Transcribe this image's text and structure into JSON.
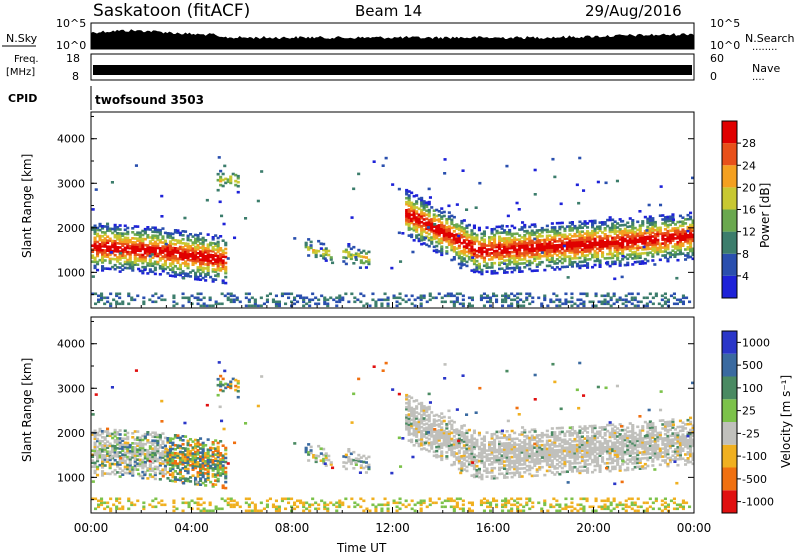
{
  "header": {
    "title": "Saskatoon (fitACF)",
    "beam": "Beam 14",
    "date": "29/Aug/2016"
  },
  "top_panels": {
    "nsky_label": "N.Sky",
    "nsearch_label": "N.Search",
    "nsearch_dots": "........",
    "nsky_ticks": [
      "10^5",
      "10^0"
    ],
    "nsearch_ticks": [
      "10^5",
      "10^0"
    ],
    "freq_label": "Freq.",
    "freq_unit": "[MHz]",
    "freq_ticks": [
      "18",
      "8"
    ],
    "nave_label": "Nave",
    "nave_dots": "....",
    "nave_ticks": [
      "60",
      "0"
    ],
    "cpid_label": "CPID",
    "cpid_value": "twofsound 3503"
  },
  "chart_data": [
    {
      "type": "heatmap",
      "name": "power",
      "ylabel": "Slant Range [km]",
      "ylim": [
        200,
        4600
      ],
      "yticks": [
        "1000",
        "2000",
        "3000",
        "4000"
      ],
      "colorbar_label": "Power [dB]",
      "colorbar_ticks": [
        "4",
        "8",
        "12",
        "16",
        "20",
        "24",
        "28"
      ],
      "colorbar_colors": [
        "#1e22d8",
        "#2a4fae",
        "#3c7d6c",
        "#6aa84f",
        "#c8c832",
        "#f4a020",
        "#e8501a",
        "#e00000"
      ],
      "echo_bands": [
        {
          "t_start": 0.0,
          "t_end": 5.3,
          "range_center": [
            1550,
            1450,
            1250
          ],
          "strength": "strong"
        },
        {
          "t_start": 5.0,
          "t_end": 5.8,
          "range_center": [
            3000,
            3100,
            3000
          ],
          "strength": "weak"
        },
        {
          "t_start": 8.5,
          "t_end": 9.5,
          "range_center": [
            1500,
            1450,
            1400
          ],
          "strength": "weak"
        },
        {
          "t_start": 10.0,
          "t_end": 11.0,
          "range_center": [
            1400,
            1350,
            1300
          ],
          "strength": "weak"
        },
        {
          "t_start": 12.5,
          "t_end": 24.0,
          "range_center": [
            2300,
            1450,
            1550,
            1650,
            1800
          ],
          "strength": "strong"
        }
      ]
    },
    {
      "type": "heatmap",
      "name": "velocity",
      "ylabel": "Slant Range [km]",
      "ylim": [
        200,
        4600
      ],
      "yticks": [
        "1000",
        "2000",
        "3000",
        "4000"
      ],
      "colorbar_label": "Velocity [m s⁻¹]",
      "colorbar_ticks": [
        "1000",
        "500",
        "100",
        "25",
        "-25",
        "-100",
        "-500",
        "-1000"
      ],
      "colorbar_colors": [
        "#2a36c8",
        "#3a6aa0",
        "#4a8a62",
        "#7cc24a",
        "#c0c0bc",
        "#f0b020",
        "#f07010",
        "#e01010"
      ],
      "xlabel": "Time UT",
      "xticks": [
        "00:00",
        "04:00",
        "08:00",
        "12:00",
        "16:00",
        "20:00",
        "00:00"
      ]
    }
  ]
}
